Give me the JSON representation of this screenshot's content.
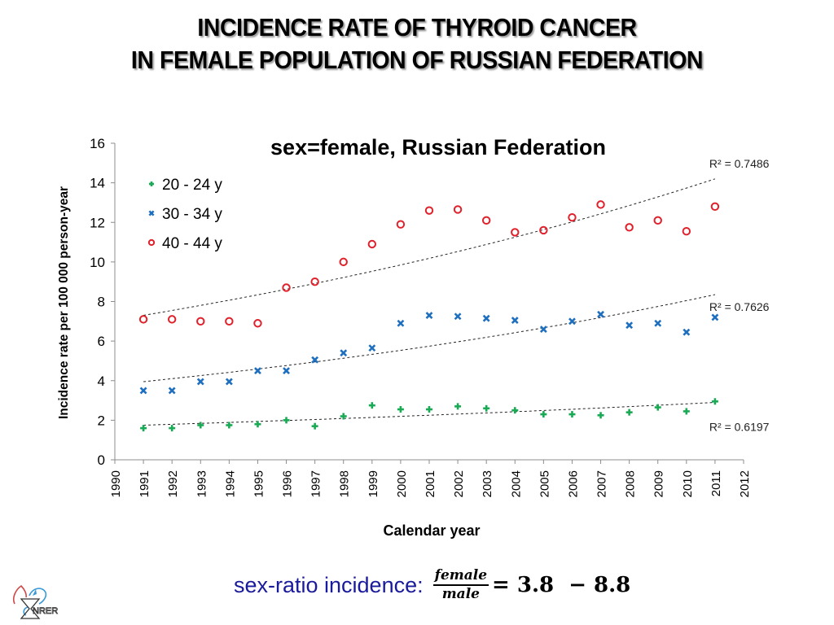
{
  "slide": {
    "title_line1": "INCIDENCE RATE OF THYROID CANCER",
    "title_line2": "IN FEMALE POPULATION OF RUSSIAN FEDERATION",
    "formula_label": "sex-ratio incidence:",
    "formula_numerator": "female",
    "formula_denominator": "male",
    "formula_result": "= 3.8  − 8.8",
    "logo_text": "NRER"
  },
  "chart_data": {
    "type": "scatter",
    "title": "sex=female, Russian Federation",
    "xlabel": "Calendar year",
    "ylabel": "Incidence rate per 100 000 person-year",
    "xlim": [
      1990,
      2012
    ],
    "ylim": [
      0,
      16
    ],
    "xticks": [
      1990,
      1991,
      1992,
      1993,
      1994,
      1995,
      1996,
      1997,
      1998,
      1999,
      2000,
      2001,
      2002,
      2003,
      2004,
      2005,
      2006,
      2007,
      2008,
      2009,
      2010,
      2011,
      2012
    ],
    "yticks": [
      0,
      2,
      4,
      6,
      8,
      10,
      12,
      14,
      16
    ],
    "grid": false,
    "legend_position": "top-left",
    "x": [
      1991,
      1992,
      1993,
      1994,
      1995,
      1996,
      1997,
      1998,
      1999,
      2000,
      2001,
      2002,
      2003,
      2004,
      2005,
      2006,
      2007,
      2008,
      2009,
      2010,
      2011
    ],
    "series": [
      {
        "name": "20 - 24 y",
        "marker": "plus",
        "color": "#1aaa55",
        "values": [
          1.6,
          1.6,
          1.75,
          1.75,
          1.8,
          2.0,
          1.7,
          2.2,
          2.75,
          2.55,
          2.55,
          2.7,
          2.6,
          2.5,
          2.3,
          2.3,
          2.25,
          2.4,
          2.65,
          2.45,
          2.95
        ],
        "trendline": {
          "type": "exponential",
          "start": 1.75,
          "end": 2.9,
          "r2_label": "R² = 0.6197"
        }
      },
      {
        "name": "30 - 34 y",
        "marker": "x",
        "color": "#1f6fbf",
        "values": [
          3.5,
          3.5,
          3.95,
          3.95,
          4.5,
          4.5,
          5.05,
          5.4,
          5.65,
          6.9,
          7.3,
          7.25,
          7.15,
          7.05,
          6.6,
          7.0,
          7.35,
          6.8,
          6.9,
          6.45,
          7.2
        ],
        "trendline": {
          "type": "exponential",
          "start": 3.95,
          "end": 8.35,
          "r2_label": "R² = 0.7626"
        }
      },
      {
        "name": "40 - 44 y",
        "marker": "circle",
        "color": "#e0202a",
        "values": [
          7.1,
          7.1,
          7.0,
          7.0,
          6.9,
          8.7,
          9.0,
          10.0,
          10.9,
          11.9,
          12.6,
          12.65,
          12.1,
          11.5,
          11.6,
          12.25,
          12.9,
          11.75,
          12.1,
          11.55,
          12.8
        ],
        "trendline": {
          "type": "exponential",
          "start": 7.3,
          "end": 14.2,
          "r2_label": "R² = 0.7486"
        }
      }
    ]
  }
}
